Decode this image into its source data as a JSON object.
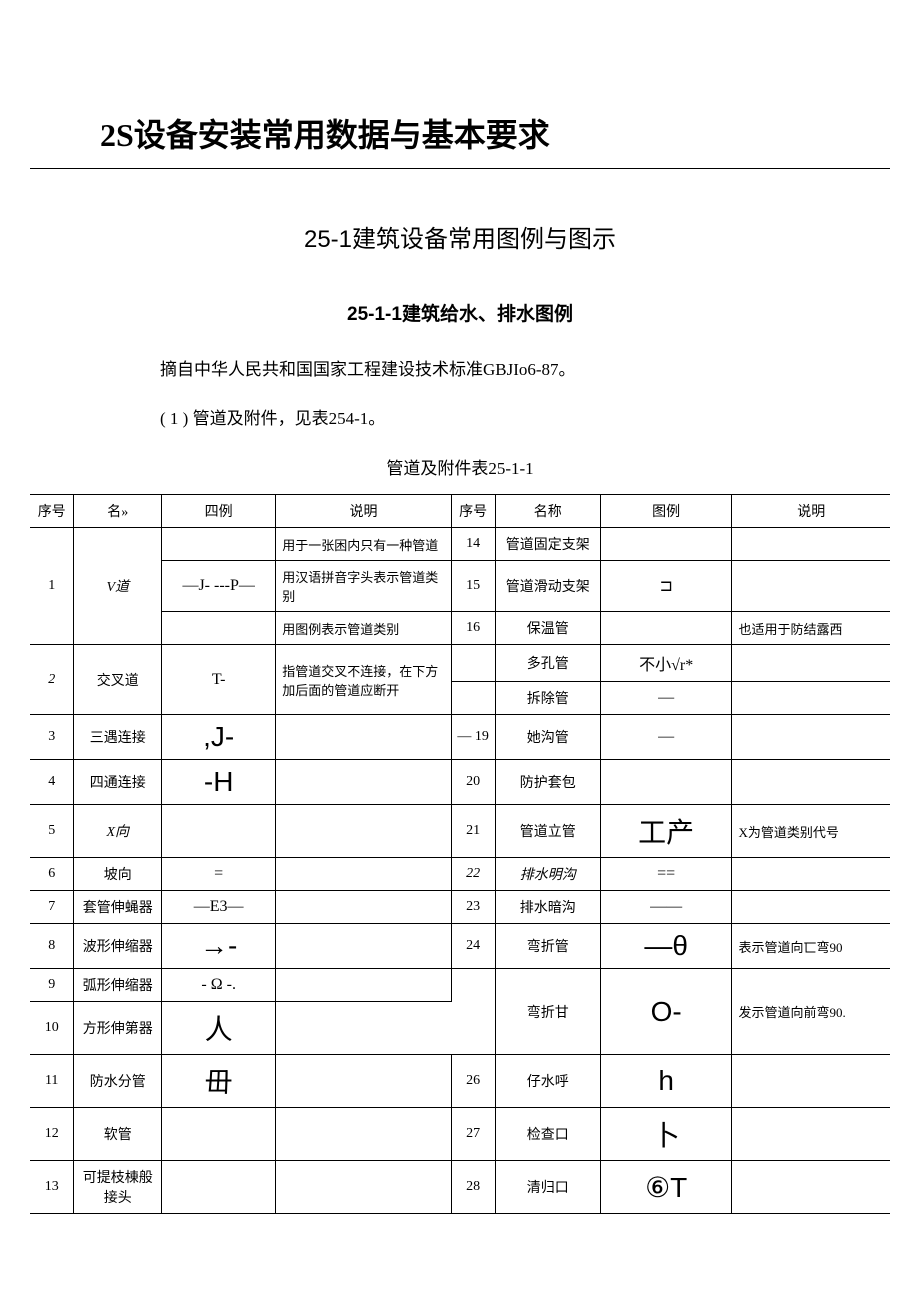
{
  "titles": {
    "main": "2S设备安装常用数据与基本要求",
    "sub": "25-1建筑设备常用图例与图示",
    "subsub": "25-1-1建筑给水、排水图例"
  },
  "paragraphs": {
    "p1": "摘自中华人民共和国国家工程建设技术标准GBJIo6-87。",
    "p2": "( 1 ) 管道及附件，见表254-1。"
  },
  "table_caption": "管道及附件表25-1-1",
  "headers": {
    "seq": "序号",
    "name": "名»",
    "symbol": "四例",
    "desc": "说明",
    "seq2": "序号",
    "name2": "名称",
    "symbol2": "图例",
    "desc2": "说明"
  },
  "left_rows": [
    {
      "seq": "1",
      "name": "V道",
      "name_italic": true,
      "symbols": [
        "",
        "—J-\n---P—",
        ""
      ],
      "descs": [
        "用于一张困内只有一种管道",
        "用汉语拼音字头表示管道类别",
        "用图例表示管道类别"
      ]
    },
    {
      "seq": "2",
      "name": "交叉道",
      "name_italic": true,
      "symbol": "T-",
      "desc": "指管道交叉不连接，在下方加后面的管道应断开"
    },
    {
      "seq": "3",
      "name": "三遇连接",
      "symbol": ",J-",
      "symbol_big": true,
      "desc": ""
    },
    {
      "seq": "4",
      "name": "四通连接",
      "symbol": "-H",
      "symbol_big": true,
      "desc": ""
    },
    {
      "seq": "5",
      "name": "X向",
      "name_italic": true,
      "symbol": "",
      "desc": ""
    },
    {
      "seq": "6",
      "name": "坡向",
      "symbol": "=",
      "desc": ""
    },
    {
      "seq": "7",
      "name": "套管伸蝇器",
      "symbol": "—E3—",
      "desc": ""
    },
    {
      "seq": "8",
      "name": "波形伸缩器",
      "symbol": "→-",
      "symbol_big": true,
      "desc": ""
    },
    {
      "seq": "9",
      "name": "弧形伸缩器",
      "symbol": "- Ω -.",
      "desc": ""
    },
    {
      "seq": "10",
      "name": "方形伸第器",
      "symbol": "人",
      "symbol_big": true,
      "desc": ""
    },
    {
      "seq": "11",
      "name": "防水分管",
      "symbol": "毌",
      "symbol_big": true,
      "desc": ""
    },
    {
      "seq": "12",
      "name": "软管",
      "symbol": "",
      "desc": ""
    },
    {
      "seq": "13",
      "name": "可提枝棟般接头",
      "symbol": "",
      "desc": ""
    }
  ],
  "right_rows": [
    {
      "seq": "14",
      "name": "管道固定支架",
      "symbol": "",
      "desc": ""
    },
    {
      "seq": "15",
      "name": "管道滑动支架",
      "symbol": "⊐",
      "desc": ""
    },
    {
      "seq": "16",
      "name": "保温管",
      "symbol": "",
      "desc": "也适用于防结露西"
    },
    {
      "seq": "",
      "name": "多孔管",
      "symbol": "不小√r*",
      "desc": ""
    },
    {
      "seq": "",
      "name": "拆除管",
      "symbol": "—",
      "desc": ""
    },
    {
      "seq": "— 19",
      "name": "她沟管",
      "symbol": "—",
      "desc": ""
    },
    {
      "seq": "20",
      "name": "防护套包",
      "symbol": "",
      "desc": ""
    },
    {
      "seq": "21",
      "name": "管道立管",
      "symbol": "工产",
      "symbol_big": true,
      "desc": "X为管道类别代号"
    },
    {
      "seq": "22",
      "name": "排水明沟",
      "name_italic": true,
      "symbol": "==",
      "desc": ""
    },
    {
      "seq": "23",
      "name": "排水暗沟",
      "symbol": "——",
      "desc": ""
    },
    {
      "seq": "24",
      "name": "弯折管",
      "symbol": "—θ",
      "symbol_big": true,
      "desc": "表示管道向匸弯90"
    },
    {
      "seq": "",
      "name": "弯折甘",
      "symbol": "O-",
      "symbol_big": true,
      "desc": "发示管道向前弯90."
    },
    {
      "seq": "26",
      "name": "仔水呼",
      "symbol": "h",
      "symbol_big": true,
      "desc": ""
    },
    {
      "seq": "27",
      "name": "检查口",
      "symbol": "卜",
      "symbol_big": true,
      "desc": ""
    },
    {
      "seq": "28",
      "name": "清归口",
      "symbol": "⑥T",
      "symbol_big": true,
      "desc": ""
    }
  ]
}
